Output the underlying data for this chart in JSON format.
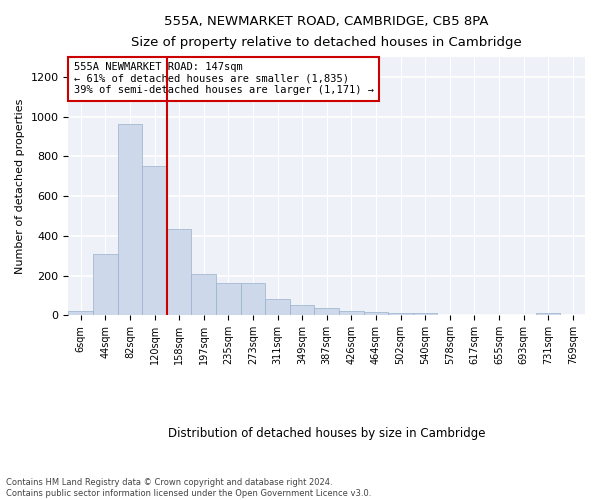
{
  "title": "555A, NEWMARKET ROAD, CAMBRIDGE, CB5 8PA",
  "subtitle": "Size of property relative to detached houses in Cambridge",
  "xlabel": "Distribution of detached houses by size in Cambridge",
  "ylabel": "Number of detached properties",
  "footer1": "Contains HM Land Registry data © Crown copyright and database right 2024.",
  "footer2": "Contains public sector information licensed under the Open Government Licence v3.0.",
  "annotation_line1": "555A NEWMARKET ROAD: 147sqm",
  "annotation_line2": "← 61% of detached houses are smaller (1,835)",
  "annotation_line3": "39% of semi-detached houses are larger (1,171) →",
  "bar_color": "#cdd9ea",
  "bar_edge_color": "#9ab0cc",
  "ref_line_color": "#cc0000",
  "ref_line_bin": 3.5,
  "categories": [
    "6sqm",
    "44sqm",
    "82sqm",
    "120sqm",
    "158sqm",
    "197sqm",
    "235sqm",
    "273sqm",
    "311sqm",
    "349sqm",
    "387sqm",
    "426sqm",
    "464sqm",
    "502sqm",
    "540sqm",
    "578sqm",
    "617sqm",
    "655sqm",
    "693sqm",
    "731sqm",
    "769sqm"
  ],
  "values": [
    22,
    310,
    965,
    750,
    435,
    210,
    165,
    165,
    85,
    50,
    35,
    20,
    15,
    12,
    10,
    0,
    0,
    0,
    0,
    10,
    0
  ],
  "ylim": [
    0,
    1300
  ],
  "yticks": [
    0,
    200,
    400,
    600,
    800,
    1000,
    1200
  ],
  "background_color": "#eef2f8"
}
